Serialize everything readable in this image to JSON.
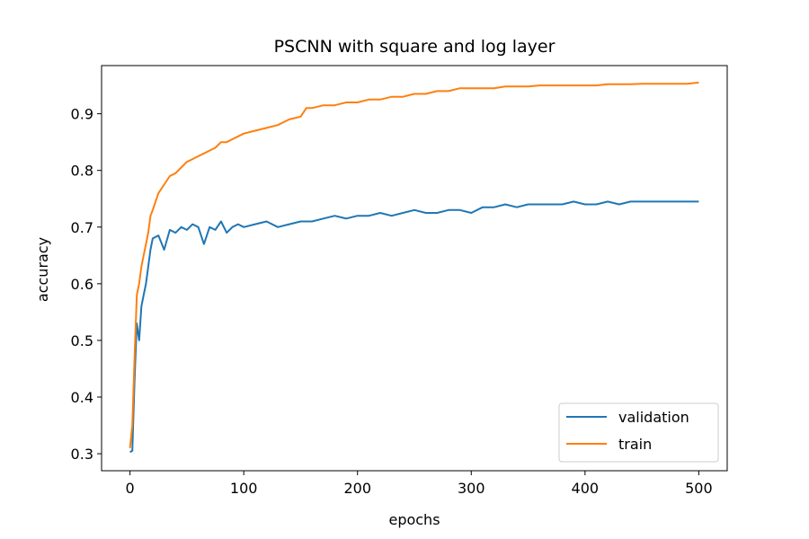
{
  "chart_data": {
    "type": "line",
    "title": "PSCNN with square and log layer",
    "xlabel": "epochs",
    "ylabel": "accuracy",
    "xlim": [
      -25,
      525
    ],
    "ylim": [
      0.27,
      0.985
    ],
    "xticks": [
      0,
      100,
      200,
      300,
      400,
      500
    ],
    "yticks": [
      0.3,
      0.4,
      0.5,
      0.6,
      0.7,
      0.8,
      0.9
    ],
    "grid": false,
    "legend": "lower-right",
    "series": [
      {
        "name": "validation",
        "color": "#1f77b4",
        "x": [
          0,
          2,
          4,
          6,
          8,
          10,
          12,
          14,
          16,
          18,
          20,
          25,
          30,
          35,
          40,
          45,
          50,
          55,
          60,
          65,
          70,
          75,
          80,
          85,
          90,
          95,
          100,
          110,
          120,
          130,
          140,
          150,
          160,
          170,
          180,
          190,
          200,
          210,
          220,
          230,
          240,
          250,
          260,
          270,
          280,
          290,
          300,
          310,
          320,
          330,
          340,
          350,
          360,
          370,
          380,
          390,
          400,
          410,
          420,
          430,
          440,
          450,
          460,
          470,
          480,
          490,
          500
        ],
        "values": [
          0.303,
          0.305,
          0.43,
          0.53,
          0.5,
          0.56,
          0.58,
          0.6,
          0.63,
          0.66,
          0.68,
          0.685,
          0.66,
          0.695,
          0.69,
          0.7,
          0.695,
          0.705,
          0.7,
          0.67,
          0.7,
          0.695,
          0.71,
          0.69,
          0.7,
          0.705,
          0.7,
          0.705,
          0.71,
          0.7,
          0.705,
          0.71,
          0.71,
          0.715,
          0.72,
          0.715,
          0.72,
          0.72,
          0.725,
          0.72,
          0.725,
          0.73,
          0.725,
          0.725,
          0.73,
          0.73,
          0.725,
          0.735,
          0.735,
          0.74,
          0.735,
          0.74,
          0.74,
          0.74,
          0.74,
          0.745,
          0.74,
          0.74,
          0.745,
          0.74,
          0.745,
          0.745,
          0.745,
          0.745,
          0.745,
          0.745,
          0.745
        ]
      },
      {
        "name": "train",
        "color": "#ff7f0e",
        "x": [
          0,
          2,
          4,
          6,
          8,
          10,
          12,
          14,
          16,
          18,
          20,
          25,
          30,
          35,
          40,
          45,
          50,
          55,
          60,
          65,
          70,
          75,
          80,
          85,
          90,
          95,
          100,
          110,
          120,
          130,
          140,
          150,
          155,
          160,
          170,
          180,
          190,
          200,
          210,
          220,
          230,
          240,
          250,
          260,
          270,
          280,
          290,
          300,
          310,
          320,
          330,
          340,
          350,
          360,
          370,
          380,
          390,
          400,
          410,
          420,
          430,
          440,
          450,
          460,
          470,
          480,
          490,
          500
        ],
        "values": [
          0.31,
          0.35,
          0.47,
          0.58,
          0.6,
          0.63,
          0.65,
          0.67,
          0.69,
          0.72,
          0.73,
          0.76,
          0.775,
          0.79,
          0.795,
          0.805,
          0.815,
          0.82,
          0.825,
          0.83,
          0.835,
          0.84,
          0.85,
          0.85,
          0.855,
          0.86,
          0.865,
          0.87,
          0.875,
          0.88,
          0.89,
          0.895,
          0.91,
          0.91,
          0.915,
          0.915,
          0.92,
          0.92,
          0.925,
          0.925,
          0.93,
          0.93,
          0.935,
          0.935,
          0.94,
          0.94,
          0.945,
          0.945,
          0.945,
          0.945,
          0.948,
          0.948,
          0.948,
          0.95,
          0.95,
          0.95,
          0.95,
          0.95,
          0.95,
          0.952,
          0.952,
          0.952,
          0.953,
          0.953,
          0.953,
          0.953,
          0.953,
          0.955
        ]
      }
    ]
  }
}
